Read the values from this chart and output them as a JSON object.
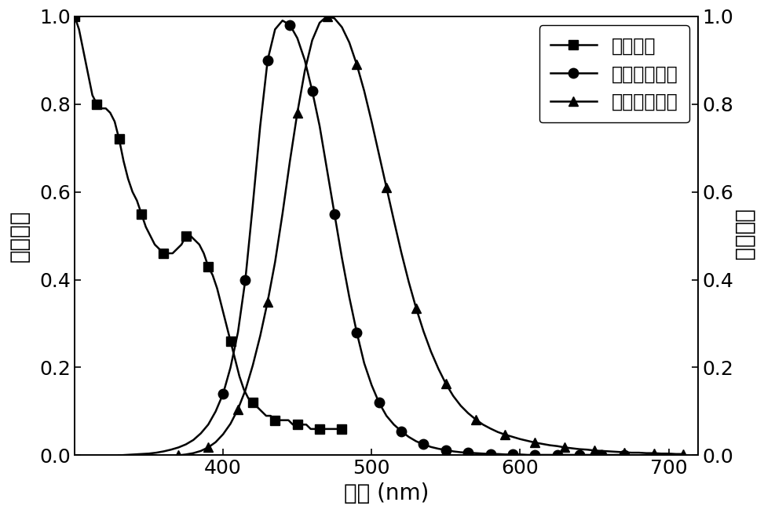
{
  "xlim": [
    300,
    720
  ],
  "ylim": [
    0.0,
    1.0
  ],
  "xlabel": "波长 (nm)",
  "ylabel_left": "吸收强度",
  "ylabel_right": "发光强度",
  "legend_labels": [
    "吸收强谱",
    "光致发光强谱",
    "电致发光强谱"
  ],
  "xticks": [
    400,
    500,
    600,
    700
  ],
  "yticks_left": [
    0.0,
    0.2,
    0.4,
    0.6,
    0.8,
    1.0
  ],
  "yticks_right": [
    0.0,
    0.2,
    0.4,
    0.6,
    0.8,
    1.0
  ],
  "abs_x": [
    300,
    303,
    306,
    309,
    312,
    315,
    318,
    321,
    324,
    327,
    330,
    333,
    336,
    339,
    342,
    345,
    348,
    351,
    354,
    357,
    360,
    363,
    366,
    369,
    372,
    375,
    378,
    381,
    384,
    387,
    390,
    393,
    396,
    399,
    402,
    405,
    408,
    411,
    414,
    417,
    420,
    423,
    426,
    429,
    432,
    435,
    438,
    441,
    444,
    447,
    450,
    453,
    456,
    459,
    462,
    465,
    468,
    471,
    474,
    477,
    480
  ],
  "abs_y": [
    1.0,
    0.97,
    0.92,
    0.87,
    0.82,
    0.8,
    0.79,
    0.79,
    0.78,
    0.76,
    0.72,
    0.67,
    0.63,
    0.6,
    0.58,
    0.55,
    0.52,
    0.5,
    0.48,
    0.47,
    0.46,
    0.46,
    0.46,
    0.47,
    0.48,
    0.5,
    0.5,
    0.49,
    0.48,
    0.46,
    0.43,
    0.41,
    0.38,
    0.34,
    0.3,
    0.26,
    0.22,
    0.18,
    0.15,
    0.13,
    0.12,
    0.11,
    0.1,
    0.09,
    0.09,
    0.08,
    0.08,
    0.08,
    0.08,
    0.07,
    0.07,
    0.07,
    0.07,
    0.06,
    0.06,
    0.06,
    0.06,
    0.06,
    0.06,
    0.06,
    0.06
  ],
  "pl_x": [
    330,
    335,
    340,
    345,
    350,
    355,
    360,
    365,
    370,
    375,
    380,
    385,
    390,
    395,
    400,
    405,
    410,
    415,
    420,
    425,
    430,
    435,
    440,
    445,
    450,
    455,
    460,
    465,
    470,
    475,
    480,
    485,
    490,
    495,
    500,
    505,
    510,
    515,
    520,
    525,
    530,
    535,
    540,
    545,
    550,
    555,
    560,
    565,
    570,
    575,
    580,
    585,
    590,
    595,
    600,
    605,
    610,
    615,
    620,
    625,
    630,
    635,
    640,
    645,
    650,
    655,
    660,
    665,
    670
  ],
  "pl_y": [
    0.0,
    0.001,
    0.002,
    0.003,
    0.004,
    0.006,
    0.009,
    0.013,
    0.018,
    0.025,
    0.035,
    0.05,
    0.07,
    0.1,
    0.14,
    0.2,
    0.28,
    0.4,
    0.57,
    0.75,
    0.9,
    0.97,
    0.99,
    0.98,
    0.95,
    0.9,
    0.83,
    0.75,
    0.65,
    0.55,
    0.45,
    0.36,
    0.28,
    0.21,
    0.16,
    0.12,
    0.09,
    0.07,
    0.055,
    0.042,
    0.032,
    0.025,
    0.019,
    0.015,
    0.012,
    0.009,
    0.007,
    0.006,
    0.005,
    0.004,
    0.003,
    0.003,
    0.002,
    0.002,
    0.002,
    0.001,
    0.001,
    0.001,
    0.001,
    0.001,
    0.001,
    0.001,
    0.001,
    0.001,
    0.001,
    0.001,
    0.001,
    0.001,
    0.001
  ],
  "el_x": [
    370,
    375,
    380,
    385,
    390,
    395,
    400,
    405,
    410,
    415,
    420,
    425,
    430,
    435,
    440,
    445,
    450,
    455,
    460,
    465,
    470,
    475,
    480,
    485,
    490,
    495,
    500,
    505,
    510,
    515,
    520,
    525,
    530,
    535,
    540,
    545,
    550,
    555,
    560,
    565,
    570,
    575,
    580,
    585,
    590,
    595,
    600,
    605,
    610,
    615,
    620,
    625,
    630,
    635,
    640,
    645,
    650,
    655,
    660,
    665,
    670,
    675,
    680,
    685,
    690,
    695,
    700,
    705,
    710
  ],
  "el_y": [
    0.0,
    0.002,
    0.005,
    0.01,
    0.018,
    0.03,
    0.048,
    0.072,
    0.105,
    0.148,
    0.205,
    0.272,
    0.35,
    0.44,
    0.55,
    0.67,
    0.78,
    0.875,
    0.945,
    0.985,
    1.0,
    0.995,
    0.975,
    0.94,
    0.89,
    0.83,
    0.76,
    0.685,
    0.61,
    0.535,
    0.462,
    0.395,
    0.335,
    0.282,
    0.236,
    0.197,
    0.163,
    0.135,
    0.113,
    0.096,
    0.082,
    0.07,
    0.061,
    0.053,
    0.047,
    0.042,
    0.037,
    0.033,
    0.029,
    0.026,
    0.023,
    0.021,
    0.018,
    0.016,
    0.014,
    0.013,
    0.011,
    0.01,
    0.009,
    0.008,
    0.007,
    0.006,
    0.006,
    0.005,
    0.005,
    0.004,
    0.004,
    0.003,
    0.003
  ],
  "abs_marker_positions": [
    0,
    5,
    10,
    15,
    20,
    25,
    30,
    35,
    40,
    45,
    50,
    55,
    60
  ],
  "pl_marker_positions": [
    14,
    17,
    20,
    23,
    26,
    29,
    32,
    35,
    38,
    41,
    44,
    47,
    50,
    53,
    56,
    59,
    62,
    65,
    68
  ],
  "el_marker_positions": [
    0,
    4,
    8,
    12,
    16,
    20,
    24,
    28,
    32,
    36,
    40,
    44,
    48,
    52,
    56,
    60,
    64,
    68
  ],
  "line_color": "#000000",
  "background_color": "#ffffff",
  "font_size_label": 20,
  "font_size_tick": 18,
  "font_size_legend": 17,
  "line_width": 1.8,
  "marker_size": 9
}
